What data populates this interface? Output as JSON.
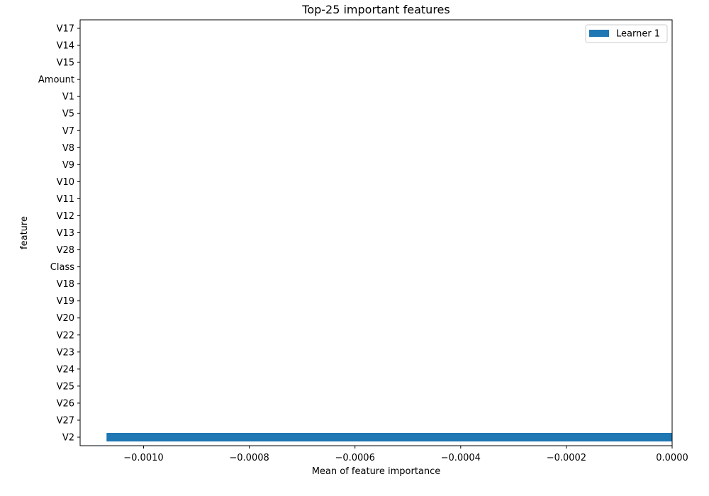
{
  "chart_data": {
    "type": "bar",
    "orientation": "horizontal",
    "title": "Top-25 important features",
    "xlabel": "Mean of feature importance",
    "ylabel": "feature",
    "categories": [
      "V17",
      "V14",
      "V15",
      "Amount",
      "V1",
      "V5",
      "V7",
      "V8",
      "V9",
      "V10",
      "V11",
      "V12",
      "V13",
      "V28",
      "Class",
      "V18",
      "V19",
      "V20",
      "V22",
      "V23",
      "V24",
      "V25",
      "V26",
      "V27",
      "V2"
    ],
    "series": [
      {
        "name": "Learner 1",
        "color": "#1f77b4",
        "values": [
          0,
          0,
          0,
          0,
          0,
          0,
          0,
          0,
          0,
          0,
          0,
          0,
          0,
          0,
          0,
          0,
          0,
          0,
          0,
          0,
          0,
          0,
          0,
          0,
          -0.00107
        ]
      }
    ],
    "xlim": [
      -0.00112,
      0.0
    ],
    "xticks": [
      -0.001,
      -0.0008,
      -0.0006,
      -0.0004,
      -0.0002,
      0.0
    ],
    "xtick_labels": [
      "−0.0010",
      "−0.0008",
      "−0.0006",
      "−0.0004",
      "−0.0002",
      "0.0000"
    ],
    "grid": false,
    "legend_position": "top-right"
  }
}
